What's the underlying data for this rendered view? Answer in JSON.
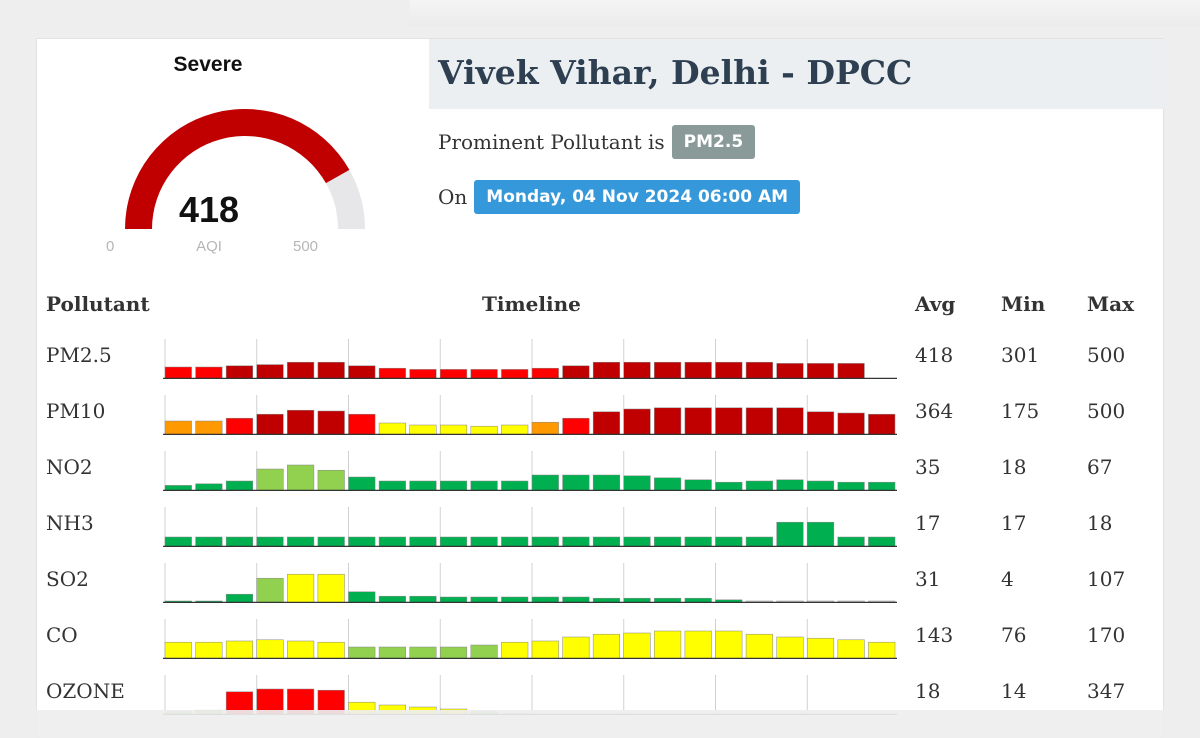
{
  "gauge": {
    "status": "Severe",
    "value": "418",
    "label": "AQI",
    "min": "0",
    "max": "500",
    "fill_fraction": 0.836,
    "color": "#c00000",
    "track_color": "#e7e6e8"
  },
  "station": {
    "title": "Vivek Vihar, Delhi - DPCC",
    "prominent_label": "Prominent Pollutant is",
    "prominent_value": "PM2.5",
    "on_label": "On",
    "datetime": "Monday, 04 Nov 2024 06:00 AM"
  },
  "table": {
    "headers": {
      "pollutant": "Pollutant",
      "timeline": "Timeline",
      "avg": "Avg",
      "min": "Min",
      "max": "Max"
    }
  },
  "colors": {
    "severe": "#c00000",
    "very_poor": "#ff0000",
    "poor": "#ff9900",
    "moderate": "#ffff00",
    "satisfactory": "#92d050",
    "good": "#00b050",
    "none": "#d9d9d9"
  },
  "pollutants": [
    {
      "name": "PM2.5",
      "avg": "418",
      "min": "301",
      "max": "500",
      "levels": [
        0.3,
        0.3,
        0.33,
        0.36,
        0.42,
        0.42,
        0.33,
        0.27,
        0.24,
        0.24,
        0.24,
        0.24,
        0.27,
        0.33,
        0.42,
        0.42,
        0.42,
        0.42,
        0.42,
        0.42,
        0.39,
        0.39,
        0.39,
        null
      ],
      "colors": [
        "very_poor",
        "very_poor",
        "severe",
        "severe",
        "severe",
        "severe",
        "severe",
        "very_poor",
        "very_poor",
        "very_poor",
        "very_poor",
        "very_poor",
        "very_poor",
        "severe",
        "severe",
        "severe",
        "severe",
        "severe",
        "severe",
        "severe",
        "severe",
        "severe",
        "severe",
        "none"
      ]
    },
    {
      "name": "PM10",
      "avg": "364",
      "min": "175",
      "max": "500",
      "levels": [
        0.35,
        0.35,
        0.42,
        0.52,
        0.62,
        0.6,
        0.52,
        0.3,
        0.25,
        0.25,
        0.22,
        0.25,
        0.32,
        0.42,
        0.58,
        0.65,
        0.68,
        0.68,
        0.68,
        0.68,
        0.68,
        0.58,
        0.55,
        0.52
      ],
      "colors": [
        "poor",
        "poor",
        "very_poor",
        "severe",
        "severe",
        "severe",
        "very_poor",
        "moderate",
        "moderate",
        "moderate",
        "moderate",
        "moderate",
        "poor",
        "very_poor",
        "severe",
        "severe",
        "severe",
        "severe",
        "severe",
        "severe",
        "severe",
        "severe",
        "severe",
        "severe"
      ]
    },
    {
      "name": "NO2",
      "avg": "35",
      "min": "18",
      "max": "67",
      "levels": [
        0.14,
        0.18,
        0.25,
        0.55,
        0.65,
        0.52,
        0.35,
        0.25,
        0.25,
        0.25,
        0.25,
        0.25,
        0.4,
        0.4,
        0.4,
        0.38,
        0.33,
        0.28,
        0.22,
        0.25,
        0.28,
        0.25,
        0.22,
        0.22
      ],
      "colors": [
        "good",
        "good",
        "good",
        "satisfactory",
        "satisfactory",
        "satisfactory",
        "good",
        "good",
        "good",
        "good",
        "good",
        "good",
        "good",
        "good",
        "good",
        "good",
        "good",
        "good",
        "good",
        "good",
        "good",
        "good",
        "good",
        "good"
      ]
    },
    {
      "name": "NH3",
      "avg": "17",
      "min": "17",
      "max": "18",
      "levels": [
        0.25,
        0.25,
        0.25,
        0.25,
        0.25,
        0.25,
        0.25,
        0.25,
        0.25,
        0.25,
        0.25,
        0.25,
        0.25,
        0.25,
        0.25,
        0.25,
        0.25,
        0.25,
        0.25,
        0.25,
        0.62,
        0.62,
        0.25,
        0.25
      ],
      "colors": [
        "good",
        "good",
        "good",
        "good",
        "good",
        "good",
        "good",
        "good",
        "good",
        "good",
        "good",
        "good",
        "good",
        "good",
        "good",
        "good",
        "good",
        "good",
        "good",
        "good",
        "good",
        "good",
        "good",
        "good"
      ]
    },
    {
      "name": "SO2",
      "avg": "31",
      "min": "4",
      "max": "107",
      "levels": [
        0.05,
        0.05,
        0.22,
        0.62,
        0.72,
        0.72,
        0.28,
        0.17,
        0.17,
        0.15,
        0.15,
        0.15,
        0.15,
        0.15,
        0.12,
        0.12,
        0.12,
        0.12,
        0.08,
        0.05,
        0.05,
        0.05,
        0.05,
        0.05
      ],
      "colors": [
        "good",
        "good",
        "good",
        "satisfactory",
        "moderate",
        "moderate",
        "good",
        "good",
        "good",
        "good",
        "good",
        "good",
        "good",
        "good",
        "good",
        "good",
        "good",
        "good",
        "good",
        "none",
        "none",
        "none",
        "none",
        "none"
      ]
    },
    {
      "name": "CO",
      "avg": "143",
      "min": "76",
      "max": "170",
      "levels": [
        0.42,
        0.42,
        0.45,
        0.48,
        0.45,
        0.42,
        0.3,
        0.3,
        0.3,
        0.3,
        0.35,
        0.42,
        0.45,
        0.55,
        0.62,
        0.65,
        0.7,
        0.7,
        0.7,
        0.62,
        0.55,
        0.52,
        0.48,
        0.42
      ],
      "colors": [
        "moderate",
        "moderate",
        "moderate",
        "moderate",
        "moderate",
        "moderate",
        "satisfactory",
        "satisfactory",
        "satisfactory",
        "satisfactory",
        "satisfactory",
        "moderate",
        "moderate",
        "moderate",
        "moderate",
        "moderate",
        "moderate",
        "moderate",
        "moderate",
        "moderate",
        "moderate",
        "moderate",
        "moderate",
        "moderate"
      ]
    },
    {
      "name": "OZONE",
      "avg": "18",
      "min": "14",
      "max": "347",
      "levels": [
        0.08,
        0.12,
        0.58,
        0.65,
        0.65,
        0.62,
        0.32,
        0.25,
        0.2,
        0.15,
        0.08,
        0.03,
        null,
        null,
        null,
        null,
        null,
        null,
        null,
        null,
        null,
        null,
        null,
        null
      ],
      "colors": [
        "satisfactory",
        "satisfactory",
        "very_poor",
        "very_poor",
        "very_poor",
        "very_poor",
        "moderate",
        "moderate",
        "moderate",
        "moderate",
        "satisfactory",
        "good",
        "none",
        "none",
        "none",
        "none",
        "none",
        "none",
        "none",
        "none",
        "none",
        "none",
        "none",
        "none"
      ]
    }
  ]
}
